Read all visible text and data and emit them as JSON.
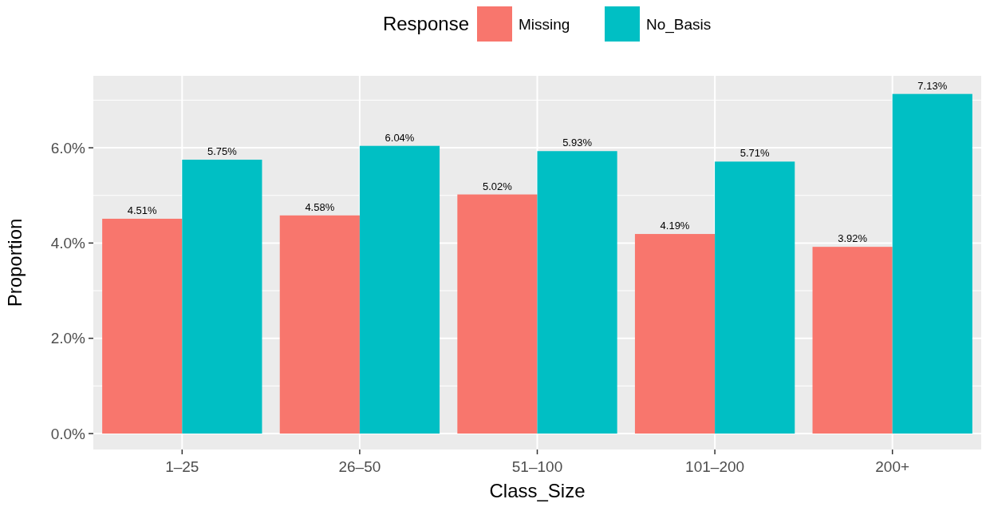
{
  "chart_data": {
    "type": "bar",
    "xlabel": "Class_Size",
    "ylabel": "Proportion",
    "legend_title": "Response",
    "legend": "top",
    "categories": [
      "1–25",
      "26–50",
      "51–100",
      "101–200",
      "200+"
    ],
    "series": [
      {
        "name": "Missing",
        "color": "#f8766d",
        "values": [
          4.51,
          4.58,
          5.02,
          4.19,
          3.92
        ],
        "value_labels": [
          "4.51%",
          "4.58%",
          "5.02%",
          "4.19%",
          "3.92%"
        ]
      },
      {
        "name": "No_Basis",
        "color": "#00bfc4",
        "values": [
          5.75,
          6.04,
          5.93,
          5.71,
          7.13
        ],
        "value_labels": [
          "5.75%",
          "6.04%",
          "5.93%",
          "5.71%",
          "7.13%"
        ]
      }
    ],
    "ylim": [
      -0.335,
      7.51
    ],
    "yticks": [
      {
        "value": 0,
        "label": "0.0%"
      },
      {
        "value": 1,
        "label": null
      },
      {
        "value": 2,
        "label": "2.0%"
      },
      {
        "value": 3,
        "label": null
      },
      {
        "value": 4,
        "label": "4.0%"
      },
      {
        "value": 5,
        "label": null
      },
      {
        "value": 6,
        "label": "6.0%"
      },
      {
        "value": 7,
        "label": null
      }
    ],
    "grid": true
  }
}
